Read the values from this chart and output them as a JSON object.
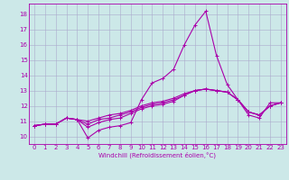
{
  "xlabel": "Windchill (Refroidissement éolien,°C)",
  "background_color": "#cce8e8",
  "grid_color": "#aaaacc",
  "line_color": "#aa00aa",
  "xlim": [
    -0.5,
    23.5
  ],
  "ylim": [
    9.5,
    18.7
  ],
  "yticks": [
    10,
    11,
    12,
    13,
    14,
    15,
    16,
    17,
    18
  ],
  "xticks": [
    0,
    1,
    2,
    3,
    4,
    5,
    6,
    7,
    8,
    9,
    10,
    11,
    12,
    13,
    14,
    15,
    16,
    17,
    18,
    19,
    20,
    21,
    22,
    23
  ],
  "series": [
    [
      10.7,
      10.8,
      10.8,
      11.2,
      11.1,
      9.9,
      10.4,
      10.6,
      10.7,
      10.9,
      12.4,
      13.5,
      13.8,
      14.4,
      16.0,
      17.3,
      18.2,
      15.3,
      13.4,
      12.4,
      11.4,
      11.2,
      12.2,
      12.2
    ],
    [
      10.7,
      10.8,
      10.8,
      11.2,
      11.1,
      10.6,
      10.9,
      11.1,
      11.2,
      11.5,
      11.8,
      12.0,
      12.1,
      12.3,
      12.7,
      13.0,
      13.1,
      13.0,
      12.9,
      12.4,
      11.6,
      11.4,
      12.0,
      12.2
    ],
    [
      10.7,
      10.8,
      10.8,
      11.2,
      11.1,
      10.8,
      11.1,
      11.2,
      11.4,
      11.6,
      11.9,
      12.1,
      12.2,
      12.4,
      12.7,
      13.0,
      13.1,
      13.0,
      12.9,
      12.4,
      11.6,
      11.4,
      12.0,
      12.2
    ],
    [
      10.7,
      10.8,
      10.8,
      11.2,
      11.1,
      11.0,
      11.2,
      11.4,
      11.5,
      11.7,
      12.0,
      12.2,
      12.3,
      12.5,
      12.8,
      13.0,
      13.1,
      13.0,
      12.9,
      12.4,
      11.6,
      11.4,
      12.0,
      12.2
    ]
  ],
  "xlabel_fontsize": 5.0,
  "tick_fontsize": 5.0
}
